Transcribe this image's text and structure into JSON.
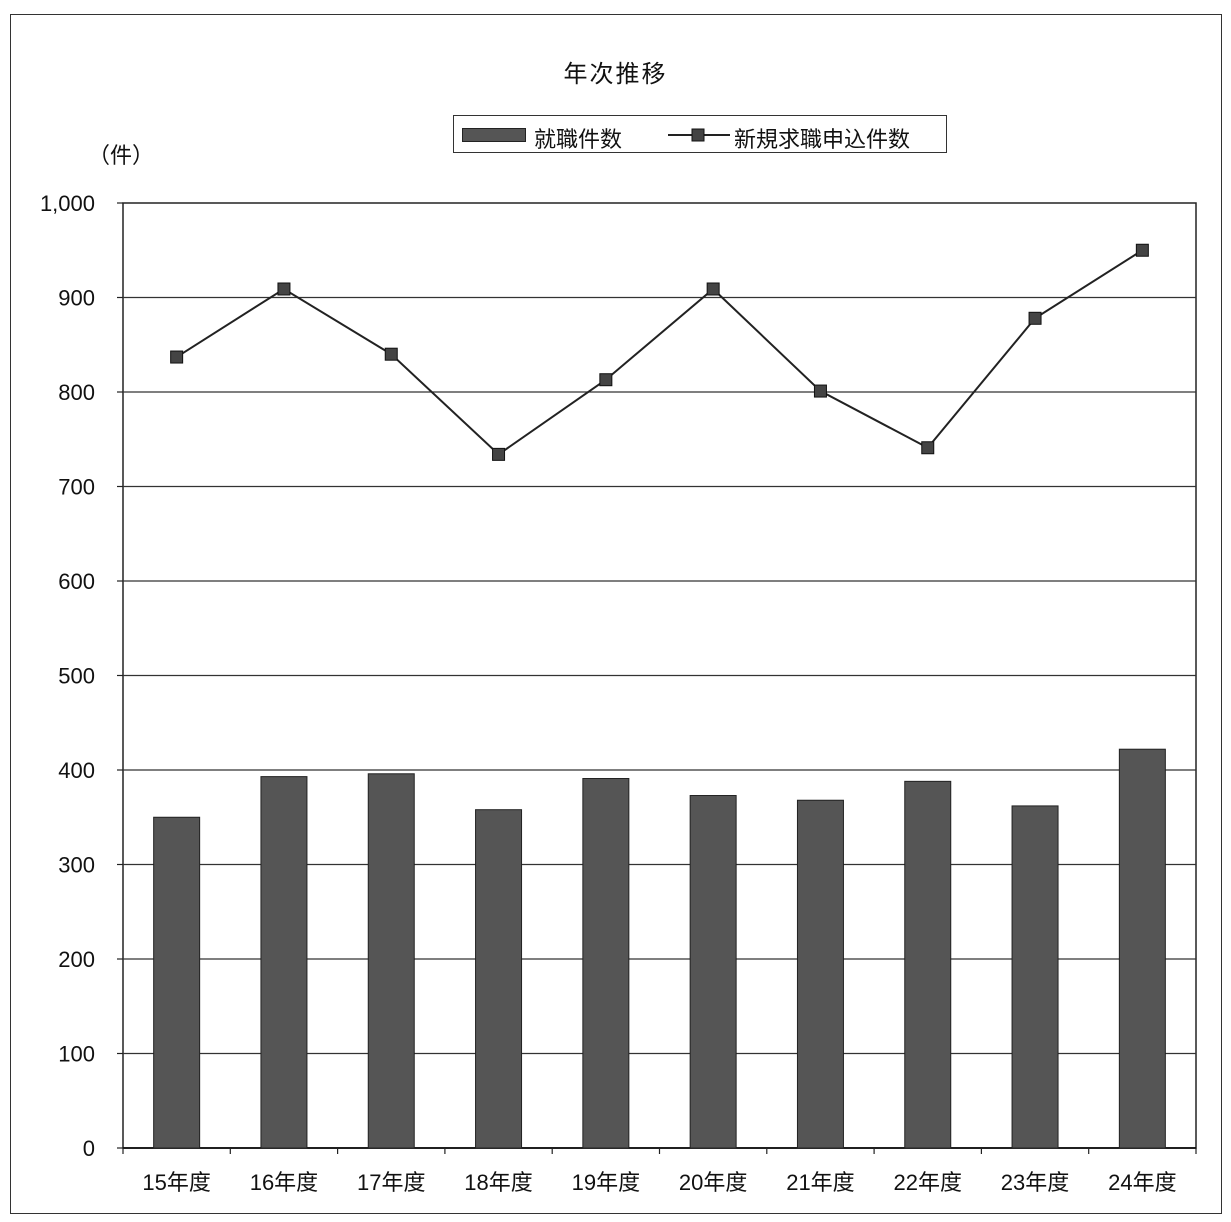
{
  "chart_data": {
    "type": "bar+line",
    "title": "年次推移",
    "y_unit": "（件）",
    "categories": [
      "15年度",
      "16年度",
      "17年度",
      "18年度",
      "19年度",
      "20年度",
      "21年度",
      "22年度",
      "23年度",
      "24年度"
    ],
    "ylim": [
      0,
      1000
    ],
    "y_ticks": [
      "0",
      "100",
      "200",
      "300",
      "400",
      "500",
      "600",
      "700",
      "800",
      "900",
      "1,000"
    ],
    "y_tick_values": [
      0,
      100,
      200,
      300,
      400,
      500,
      600,
      700,
      800,
      900,
      1000
    ],
    "grid": true,
    "legend_position": "top-center",
    "series": [
      {
        "name": "就職件数",
        "type": "bar",
        "color": "#555555",
        "values": [
          350,
          393,
          396,
          358,
          391,
          373,
          368,
          388,
          362,
          422
        ]
      },
      {
        "name": "新規求職申込件数",
        "type": "line",
        "color": "#222222",
        "marker": "square",
        "values": [
          837,
          909,
          840,
          734,
          813,
          909,
          801,
          741,
          878,
          950
        ]
      }
    ]
  }
}
